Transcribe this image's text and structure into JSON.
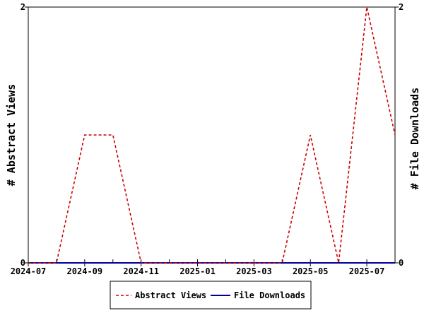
{
  "chart_data": {
    "type": "line",
    "x_axis": {
      "ticks": [
        "2024-07",
        "2024-09",
        "2024-11",
        "2025-01",
        "2025-03",
        "2025-05",
        "2025-07"
      ],
      "range": [
        "2024-07",
        "2025-08"
      ]
    },
    "y_left": {
      "label": "# Abstract Views",
      "range": [
        0,
        2
      ],
      "ticks": [
        "0",
        "2"
      ]
    },
    "y_right": {
      "label": "# File Downloads",
      "range": [
        0,
        2
      ],
      "ticks": [
        "0",
        "2"
      ]
    },
    "series": [
      {
        "name": "Abstract Views",
        "color": "#cc0000",
        "dash": "dashed",
        "axis": "left",
        "x": [
          "2024-07",
          "2024-08",
          "2024-09",
          "2024-10",
          "2024-11",
          "2024-12",
          "2025-01",
          "2025-02",
          "2025-03",
          "2025-04",
          "2025-05",
          "2025-06",
          "2025-07",
          "2025-08"
        ],
        "values": [
          0,
          0,
          1,
          1,
          0,
          0,
          0,
          0,
          0,
          0,
          1,
          0,
          2,
          1
        ]
      },
      {
        "name": "File Downloads",
        "color": "#000099",
        "dash": "solid",
        "axis": "right",
        "x": [
          "2024-07",
          "2024-08",
          "2024-09",
          "2024-10",
          "2024-11",
          "2024-12",
          "2025-01",
          "2025-02",
          "2025-03",
          "2025-04",
          "2025-05",
          "2025-06",
          "2025-07",
          "2025-08"
        ],
        "values": [
          0,
          0,
          0,
          0,
          0,
          0,
          0,
          0,
          0,
          0,
          0,
          0,
          0,
          0
        ]
      }
    ],
    "legend": {
      "placement": "bottom-center",
      "entries": [
        "Abstract Views",
        "File Downloads"
      ]
    },
    "grid": false
  }
}
